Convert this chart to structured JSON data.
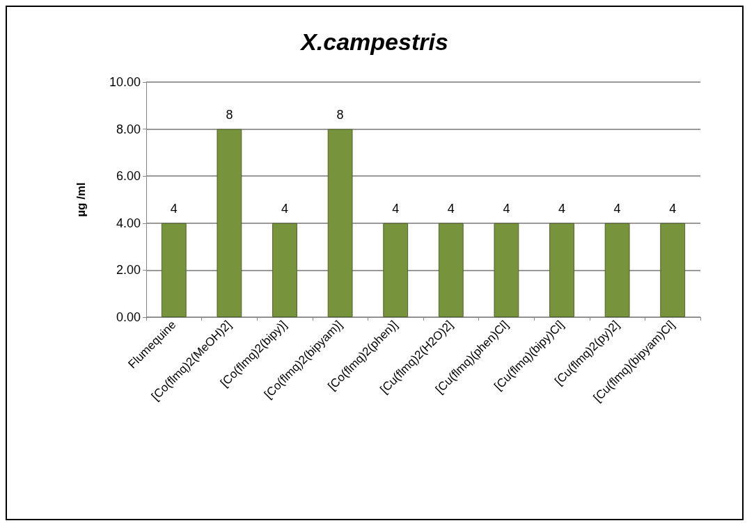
{
  "chart_data": {
    "type": "bar",
    "title": "X.campestris",
    "ylabel": "µg /ml",
    "categories": [
      "Flumequine",
      "[Co(flmq)2(MeOH)2]",
      "[Co(flmq)2(bipy)]",
      "[Co(flmq)2(bipyam)]",
      "[Co(flmq)2(phen)]",
      "[Cu(flmq)2(H2O)2]",
      "[Cu(flmq)(phen)Cl]",
      "[Cu(flmq)(bipy)Cl]",
      "[Cu(flmq)2(py)2]",
      "[Cu(flmq)(bipyam)Cl]"
    ],
    "values": [
      4,
      8,
      4,
      8,
      4,
      4,
      4,
      4,
      4,
      4
    ],
    "color": "#77933c",
    "ylim": [
      0,
      10
    ],
    "yticks": [
      {
        "value": 0,
        "label": "0.00"
      },
      {
        "value": 2,
        "label": "2.00"
      },
      {
        "value": 4,
        "label": "4.00"
      },
      {
        "value": 6,
        "label": "6.00"
      },
      {
        "value": 8,
        "label": "8.00"
      },
      {
        "value": 10,
        "label": "10.00"
      }
    ],
    "grid": "y",
    "data_labels": true
  }
}
